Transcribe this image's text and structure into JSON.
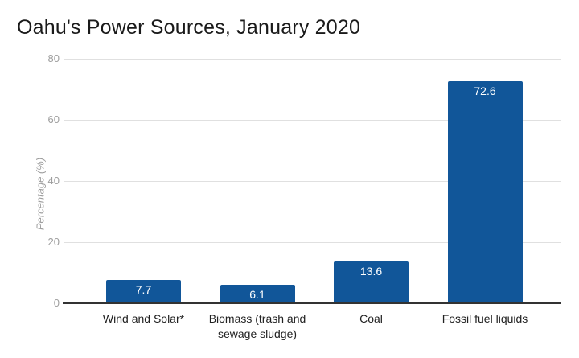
{
  "chart_data": {
    "type": "bar",
    "title": "Oahu's Power Sources, January 2020",
    "xlabel": "",
    "ylabel": "Percentage (%)",
    "categories": [
      "Wind and Solar*",
      "Biomass (trash and sewage sludge)",
      "Coal",
      "Fossil fuel liquids"
    ],
    "values": [
      7.7,
      6.1,
      13.6,
      72.6
    ],
    "value_labels": [
      "7.7",
      "6.1",
      "13.6",
      "72.6"
    ],
    "ylim": [
      0,
      80
    ],
    "yticks": [
      0,
      20,
      40,
      60,
      80
    ],
    "grid": true,
    "legend": "none",
    "colors": {
      "bar": "#115699",
      "value_label": "#ffffff",
      "title": "#1a1a1a",
      "tick_label": "#9e9e9e",
      "axis_title": "#9e9e9e",
      "category_label": "#212121",
      "gridline": "#e0e0e0",
      "axis_line": "#333333",
      "background": "#ffffff"
    }
  }
}
